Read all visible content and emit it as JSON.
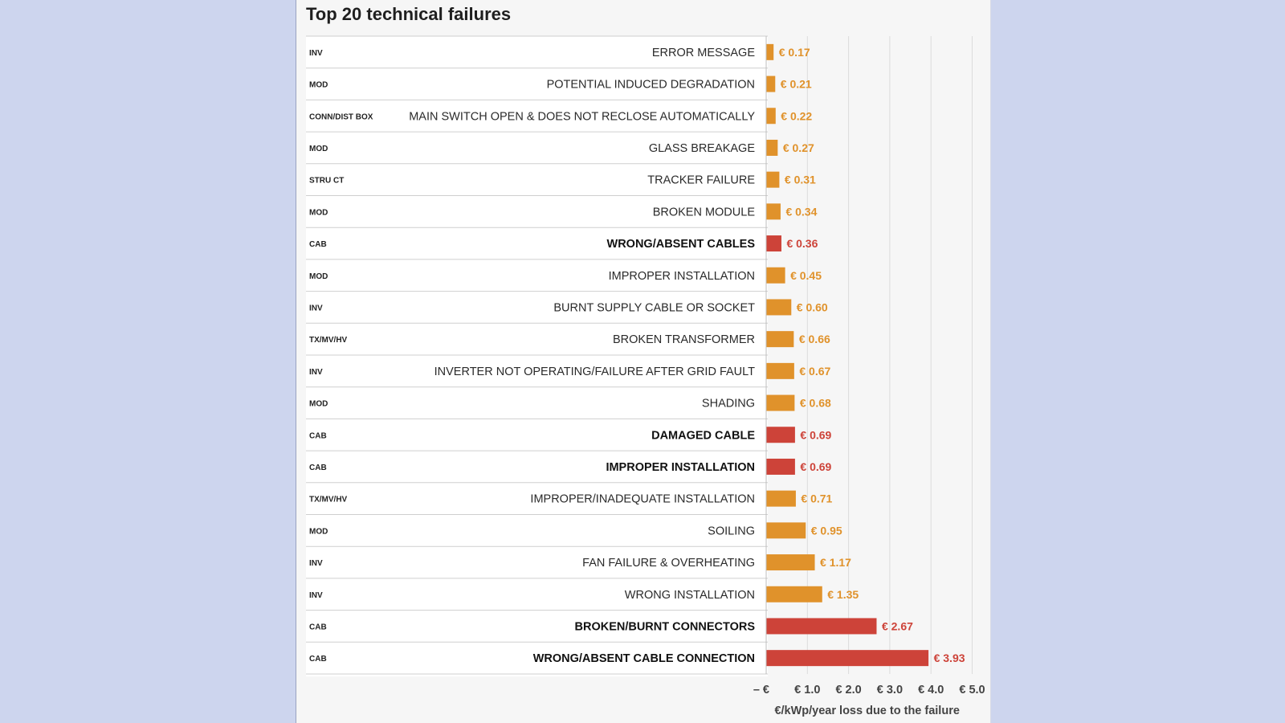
{
  "title": "Top 20 technical failures",
  "colors": {
    "normal": "#e0922b",
    "highlight": "#cd4339",
    "background": "#cdd5ee",
    "panel": "#f6f6f6",
    "gridline": "#dcdcdc",
    "row_divider": "#cfcfcf"
  },
  "chart_data": {
    "type": "bar",
    "orientation": "horizontal",
    "title": "Top 20 technical failures",
    "xlabel": "€/kWp/year loss due to the failure",
    "xlim": [
      0,
      5
    ],
    "x_ticks": [
      0,
      1,
      2,
      3,
      4,
      5
    ],
    "x_tick_labels": [
      "– €",
      "€ 1.0",
      "€ 2.0",
      "€ 3.0",
      "€ 4.0",
      "€ 5.0"
    ],
    "grid": "vertical",
    "rows": [
      {
        "category": "INV",
        "failure": "ERROR MESSAGE",
        "value": 0.17,
        "label": "€ 0.17",
        "highlight": false
      },
      {
        "category": "MOD",
        "failure": "POTENTIAL INDUCED DEGRADATION",
        "value": 0.21,
        "label": "€ 0.21",
        "highlight": false
      },
      {
        "category": "CONN/DIST BOX",
        "failure": "MAIN SWITCH OPEN & DOES NOT RECLOSE AUTOMATICALLY",
        "value": 0.22,
        "label": "€ 0.22",
        "highlight": false
      },
      {
        "category": "MOD",
        "failure": "GLASS BREAKAGE",
        "value": 0.27,
        "label": "€ 0.27",
        "highlight": false
      },
      {
        "category": "STRU CT",
        "failure": "TRACKER FAILURE",
        "value": 0.31,
        "label": "€ 0.31",
        "highlight": false
      },
      {
        "category": "MOD",
        "failure": "BROKEN MODULE",
        "value": 0.34,
        "label": "€ 0.34",
        "highlight": false
      },
      {
        "category": "CAB",
        "failure": "WRONG/ABSENT CABLES",
        "value": 0.36,
        "label": "€ 0.36",
        "highlight": true
      },
      {
        "category": "MOD",
        "failure": "IMPROPER INSTALLATION",
        "value": 0.45,
        "label": "€ 0.45",
        "highlight": false
      },
      {
        "category": "INV",
        "failure": "BURNT SUPPLY CABLE OR SOCKET",
        "value": 0.6,
        "label": "€ 0.60",
        "highlight": false
      },
      {
        "category": "TX/MV/HV",
        "failure": "BROKEN TRANSFORMER",
        "value": 0.66,
        "label": "€ 0.66",
        "highlight": false
      },
      {
        "category": "INV",
        "failure": "INVERTER NOT OPERATING/FAILURE AFTER GRID FAULT",
        "value": 0.67,
        "label": "€ 0.67",
        "highlight": false
      },
      {
        "category": "MOD",
        "failure": "SHADING",
        "value": 0.68,
        "label": "€ 0.68",
        "highlight": false
      },
      {
        "category": "CAB",
        "failure": "DAMAGED CABLE",
        "value": 0.69,
        "label": "€ 0.69",
        "highlight": true
      },
      {
        "category": "CAB",
        "failure": "IMPROPER INSTALLATION",
        "value": 0.69,
        "label": "€ 0.69",
        "highlight": true
      },
      {
        "category": "TX/MV/HV",
        "failure": "IMPROPER/INADEQUATE INSTALLATION",
        "value": 0.71,
        "label": "€ 0.71",
        "highlight": false
      },
      {
        "category": "MOD",
        "failure": "SOILING",
        "value": 0.95,
        "label": "€ 0.95",
        "highlight": false
      },
      {
        "category": "INV",
        "failure": "FAN FAILURE & OVERHEATING",
        "value": 1.17,
        "label": "€ 1.17",
        "highlight": false
      },
      {
        "category": "INV",
        "failure": "WRONG INSTALLATION",
        "value": 1.35,
        "label": "€ 1.35",
        "highlight": false
      },
      {
        "category": "CAB",
        "failure": "BROKEN/BURNT CONNECTORS",
        "value": 2.67,
        "label": "€ 2.67",
        "highlight": true
      },
      {
        "category": "CAB",
        "failure": "WRONG/ABSENT CABLE CONNECTION",
        "value": 3.93,
        "label": "€ 3.93",
        "highlight": true
      }
    ]
  }
}
